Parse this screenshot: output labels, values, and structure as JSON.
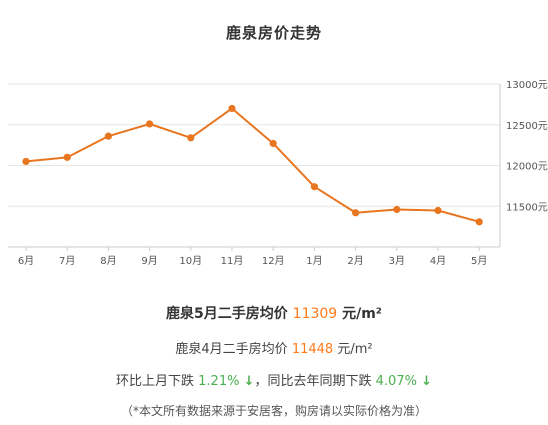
{
  "title": "鹿泉房价走势",
  "colors": {
    "line": "#e8751f",
    "grid": "#e6e6e6",
    "axis": "#cccccc",
    "highlight": "#ff7a1a",
    "down": "#4caf50"
  },
  "chart_data": {
    "type": "line",
    "categories": [
      "6月",
      "7月",
      "8月",
      "9月",
      "10月",
      "11月",
      "12月",
      "1月",
      "2月",
      "3月",
      "4月",
      "5月"
    ],
    "series": [
      {
        "values": [
          12050,
          12100,
          12360,
          12510,
          12340,
          12700,
          12270,
          11740,
          11420,
          11460,
          11448,
          11309
        ]
      }
    ],
    "y_ticks": [
      "11500元",
      "12000元",
      "12500元",
      "13000元"
    ],
    "y_tick_values": [
      11500,
      12000,
      12500,
      13000
    ],
    "ylim": [
      11000,
      13000
    ],
    "grid": true,
    "y_axis_side": "right"
  },
  "summary": {
    "current_prefix": "鹿泉5月二手房均价",
    "current_price": "11309",
    "current_unit": "元/m²",
    "prev_prefix": "鹿泉4月二手房均价",
    "prev_price": "11448",
    "prev_unit": "元/m²",
    "mom_prefix": "环比上月下跌",
    "mom_value": "1.21%",
    "mom_arrow": "↓",
    "yoy_prefix": "，同比去年同期下跌",
    "yoy_value": "4.07%",
    "yoy_arrow": "↓",
    "note": "（*本文所有数据来源于安居客，购房请以实际价格为准）"
  }
}
